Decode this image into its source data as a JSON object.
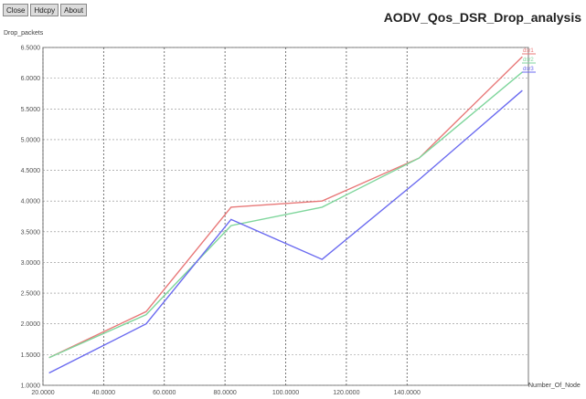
{
  "toolbar": {
    "buttons": [
      "Close",
      "Hdcpy",
      "About"
    ]
  },
  "chart_data": {
    "type": "line",
    "title": "AODV_Qos_DSR_Drop_analysis",
    "ylabel": "Drop_packets",
    "xlabel": "Number_Of_Node",
    "xlim": [
      20,
      180
    ],
    "ylim": [
      1.0,
      6.5
    ],
    "x_ticks": [
      20,
      40,
      60,
      80,
      100,
      120,
      140
    ],
    "x_tick_labels": [
      "20.0000",
      "40.0000",
      "60.0000",
      "80.0000",
      "100.0000",
      "120.0000",
      "140.0000"
    ],
    "y_ticks": [
      1.0,
      1.5,
      2.0,
      2.5,
      3.0,
      3.5,
      4.0,
      4.5,
      5.0,
      5.5,
      6.0,
      6.5
    ],
    "y_tick_labels": [
      "1.0000",
      "1.5000",
      "2.0000",
      "2.5000",
      "3.0000",
      "3.5000",
      "4.0000",
      "4.5000",
      "5.0000",
      "5.5000",
      "6.0000",
      "6.5000"
    ],
    "grid": true,
    "legend_position": "top-right",
    "series": [
      {
        "name": "dsr1",
        "color": "#e87878",
        "x": [
          22,
          54,
          82,
          112,
          144,
          178
        ],
        "y": [
          1.45,
          2.2,
          3.9,
          4.0,
          4.7,
          6.35
        ]
      },
      {
        "name": "dsr2",
        "color": "#7fd69c",
        "x": [
          22,
          54,
          82,
          112,
          144,
          178
        ],
        "y": [
          1.45,
          2.15,
          3.6,
          3.9,
          4.7,
          6.1
        ]
      },
      {
        "name": "dsr3",
        "color": "#6a6af0",
        "x": [
          22,
          54,
          82,
          112,
          144,
          178
        ],
        "y": [
          1.2,
          2.0,
          3.7,
          3.05,
          4.35,
          5.8
        ]
      }
    ]
  }
}
